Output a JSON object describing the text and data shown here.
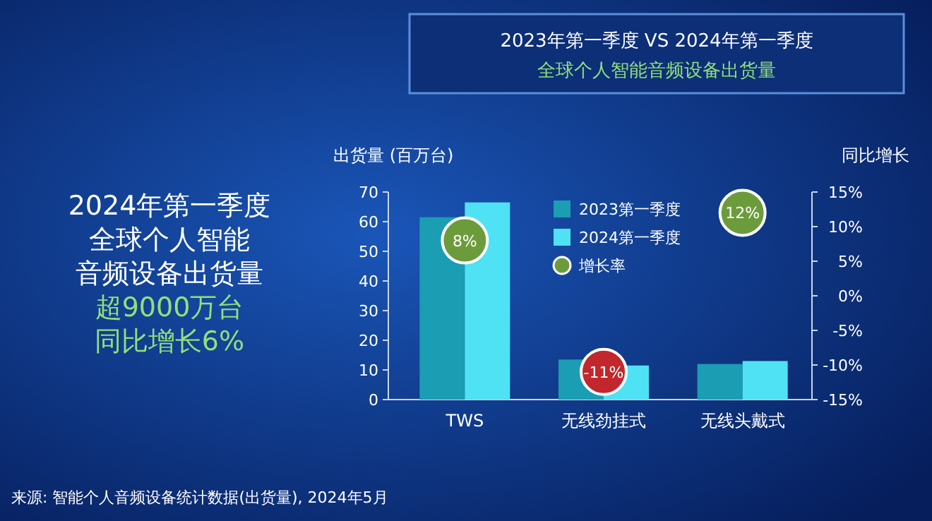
{
  "chart_data": {
    "type": "bar",
    "title": "2023年第一季度 VS 2024年第一季度",
    "subtitle": "全球个人智能音频设备出货量",
    "categories": [
      "TWS",
      "无线劲挂式",
      "无线头戴式"
    ],
    "series": [
      {
        "name": "2023第一季度",
        "color": "#1b9db4",
        "values": [
          61.5,
          13.5,
          12
        ]
      },
      {
        "name": "2024第一季度",
        "color": "#4fe2f4",
        "values": [
          66.5,
          11.5,
          13
        ]
      },
      {
        "name": "增长率",
        "type": "scatter",
        "axis": "y2",
        "colors": [
          "#6c9b3c",
          "#c1272d",
          "#6c9b3c"
        ],
        "values": [
          8,
          -11,
          12
        ],
        "value_labels": [
          "8%",
          "-11%",
          "12%"
        ]
      }
    ],
    "ylabel": "出货量 (百万台)",
    "y2label": "同比增长",
    "ylim": [
      0,
      70
    ],
    "yticks": [
      0,
      10,
      20,
      30,
      40,
      50,
      60,
      70
    ],
    "y2lim": [
      -15,
      15
    ],
    "y2ticks": [
      {
        "value": -15,
        "label": "-15%"
      },
      {
        "value": -10,
        "label": "-10%"
      },
      {
        "value": -5,
        "label": "-5%"
      },
      {
        "value": 0,
        "label": "0%"
      },
      {
        "value": 5,
        "label": "5%"
      },
      {
        "value": 10,
        "label": "10%"
      },
      {
        "value": 15,
        "label": "15%"
      }
    ],
    "legend": "top",
    "marker": "circle",
    "grid": false,
    "annotations": [
      "2024年第一季度",
      "全球个人智能",
      "音频设备出货量",
      "超9000万台",
      "同比增长6%",
      "来源: 智能个人音频设备统计数据(出货量), 2024年5月"
    ]
  }
}
